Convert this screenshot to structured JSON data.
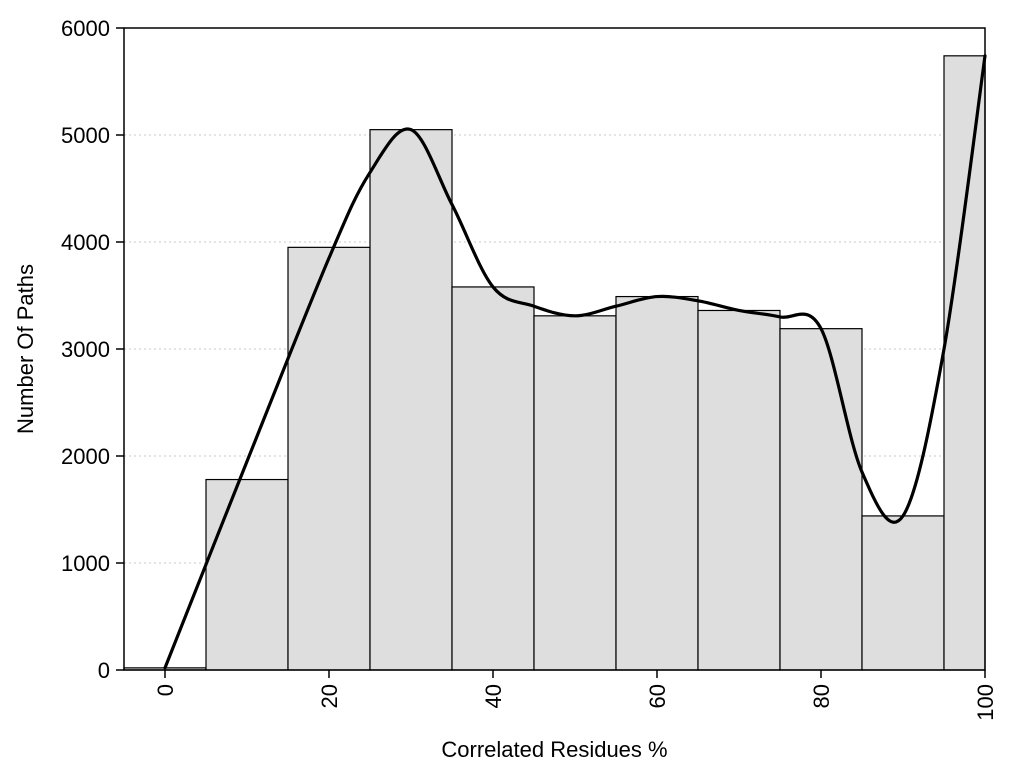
{
  "chart_data": {
    "type": "bar",
    "xlabel": "Correlated Residues %",
    "ylabel": "Number Of Paths",
    "xlim": [
      -5,
      100
    ],
    "ylim": [
      0,
      6000
    ],
    "yticks": [
      0,
      1000,
      2000,
      3000,
      4000,
      5000,
      6000
    ],
    "xticks": [
      0,
      20,
      40,
      60,
      80,
      100
    ],
    "bin_width": 10,
    "grid": "horizontal-dotted",
    "categories": [
      0,
      10,
      20,
      30,
      40,
      50,
      60,
      70,
      80,
      90,
      100
    ],
    "values": [
      20,
      1780,
      3950,
      5050,
      3580,
      3310,
      3490,
      3360,
      3190,
      1440,
      5740
    ],
    "series": [
      {
        "type": "bar",
        "values": [
          20,
          1780,
          3950,
          5050,
          3580,
          3310,
          3490,
          3360,
          3190,
          1440,
          5740
        ]
      },
      {
        "type": "line",
        "x": [
          0,
          10,
          20,
          25,
          30,
          35,
          40,
          45,
          50,
          55,
          60,
          65,
          70,
          75,
          80,
          85,
          90,
          95,
          100
        ],
        "y": [
          20,
          1950,
          3850,
          4650,
          5050,
          4350,
          3580,
          3400,
          3310,
          3400,
          3490,
          3450,
          3360,
          3300,
          3190,
          1850,
          1440,
          3000,
          5740
        ]
      }
    ]
  }
}
